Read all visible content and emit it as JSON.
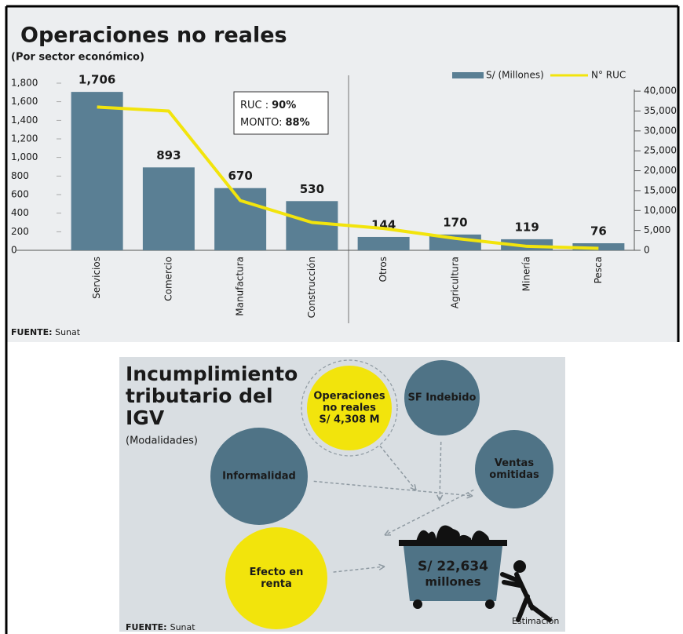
{
  "chart_data": {
    "type": "bar-line",
    "title": "Operaciones no reales",
    "subtitle": "(Por sector económico)",
    "categories": [
      "Servicios",
      "Comercio",
      "Manufactura",
      "Construcción",
      "Otros",
      "Agricultura",
      "Minería",
      "Pesca"
    ],
    "series": [
      {
        "name": "S/ (Millones)",
        "type": "bar",
        "color": "#5a7f94",
        "axis": "y",
        "values": [
          1706,
          893,
          670,
          530,
          144,
          170,
          119,
          76
        ],
        "value_labels": [
          "1,706",
          "893",
          "670",
          "530",
          "144",
          "170",
          "119",
          "76"
        ]
      },
      {
        "name": "N° RUC",
        "type": "line",
        "color": "#f2e40c",
        "axis": "y2",
        "values": [
          36000,
          35000,
          12500,
          7000,
          5500,
          3000,
          1000,
          500
        ]
      }
    ],
    "ylim": [
      0,
      1800
    ],
    "yticks": [
      0,
      200,
      400,
      600,
      800,
      {
        "value": 1000,
        "label": "1,000"
      },
      {
        "value": 1200,
        "label": "1,200"
      },
      {
        "value": 1400,
        "label": "1,400"
      },
      {
        "value": 1600,
        "label": "1,600"
      },
      {
        "value": 1800,
        "label": "1,800"
      }
    ],
    "y2lim": [
      0,
      42000
    ],
    "y2ticks": [
      0,
      {
        "value": 5000,
        "label": "5,000"
      },
      {
        "value": 10000,
        "label": "10,000"
      },
      {
        "value": 15000,
        "label": "15,000"
      },
      {
        "value": 20000,
        "label": "20,000"
      },
      {
        "value": 25000,
        "label": "25,000"
      },
      {
        "value": 30000,
        "label": "30,000"
      },
      {
        "value": 35000,
        "label": "35,000"
      },
      {
        "value": 40000,
        "label": "40,000"
      }
    ],
    "legend": "top-right",
    "annotations": [
      {
        "label": "RUC  :",
        "value": "90%"
      },
      {
        "label": "MONTO:",
        "value": "88%"
      }
    ],
    "source": {
      "label": "FUENTE:",
      "text": "Sunat"
    }
  },
  "diagram": {
    "title": [
      "Incumplimiento",
      "tributario del",
      "IGV"
    ],
    "subtitle": "(Modalidades)",
    "nodes": [
      {
        "lines": [
          "Operaciones",
          "no reales",
          "S/ 4,308 M"
        ],
        "color": "#f2e40c"
      },
      {
        "lines": [
          "SF Indebido"
        ],
        "color": "#4f7386"
      },
      {
        "lines": [
          "Informalidad"
        ],
        "color": "#4f7386"
      },
      {
        "lines": [
          "Ventas",
          "omitidas"
        ],
        "color": "#4f7386"
      },
      {
        "lines": [
          "Efecto en",
          "renta"
        ],
        "color": "#f2e40c"
      }
    ],
    "total": [
      "S/ 22,634",
      "millones"
    ],
    "note": "Estimación",
    "source": {
      "label": "FUENTE:",
      "text": "Sunat"
    }
  }
}
